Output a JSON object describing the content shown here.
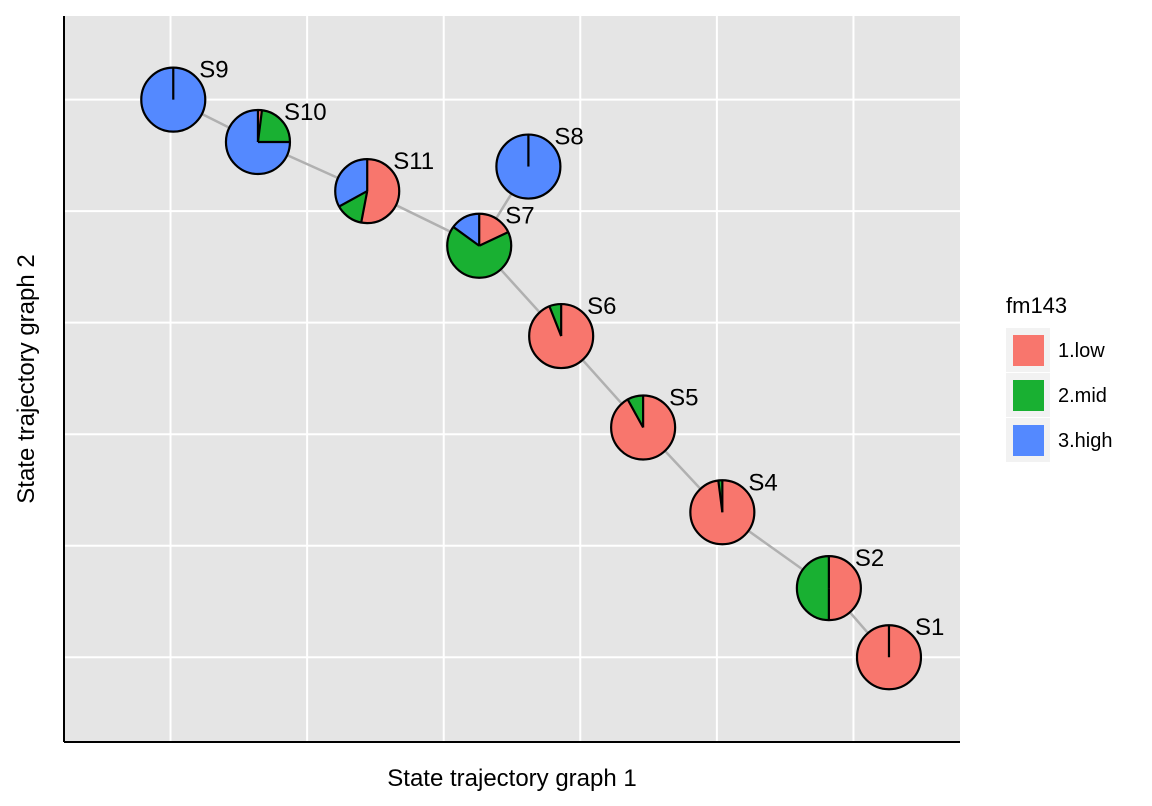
{
  "chart_data": {
    "type": "scatter",
    "subtype": "pie-nodes-trajectory",
    "xlabel": "State trajectory graph 1",
    "ylabel": "State trajectory graph 2",
    "legend": {
      "title": "fm143",
      "position": "right",
      "entries": [
        {
          "label": "1.low",
          "color": "#F8766D"
        },
        {
          "label": "2.mid",
          "color": "#19B032"
        },
        {
          "label": "3.high",
          "color": "#5489FF"
        }
      ]
    },
    "grid": true,
    "xlim": [
      -0.39,
      2.89
    ],
    "ylim": [
      -0.76,
      5.75
    ],
    "nodes": [
      {
        "label": "S1",
        "x": 2.63,
        "y": 0.0,
        "fractions": [
          1.0,
          0.0,
          0.0
        ]
      },
      {
        "label": "S2",
        "x": 2.41,
        "y": 0.62,
        "fractions": [
          0.5,
          0.5,
          0.0
        ]
      },
      {
        "label": "S4",
        "x": 2.02,
        "y": 1.3,
        "fractions": [
          0.98,
          0.02,
          0.0
        ]
      },
      {
        "label": "S5",
        "x": 1.73,
        "y": 2.06,
        "fractions": [
          0.92,
          0.08,
          0.0
        ]
      },
      {
        "label": "S6",
        "x": 1.43,
        "y": 2.88,
        "fractions": [
          0.94,
          0.06,
          0.0
        ]
      },
      {
        "label": "S7",
        "x": 1.13,
        "y": 3.69,
        "fractions": [
          0.18,
          0.67,
          0.15
        ]
      },
      {
        "label": "S8",
        "x": 1.31,
        "y": 4.4,
        "fractions": [
          0.0,
          0.0,
          1.0
        ]
      },
      {
        "label": "S11",
        "x": 0.72,
        "y": 4.18,
        "fractions": [
          0.53,
          0.14,
          0.33
        ]
      },
      {
        "label": "S10",
        "x": 0.32,
        "y": 4.62,
        "fractions": [
          0.02,
          0.23,
          0.75
        ]
      },
      {
        "label": "S9",
        "x": 0.01,
        "y": 5.0,
        "fractions": [
          0.0,
          0.0,
          1.0
        ]
      }
    ],
    "edges": [
      [
        "S1",
        "S2"
      ],
      [
        "S2",
        "S4"
      ],
      [
        "S4",
        "S5"
      ],
      [
        "S5",
        "S6"
      ],
      [
        "S6",
        "S7"
      ],
      [
        "S7",
        "S8"
      ],
      [
        "S7",
        "S11"
      ],
      [
        "S11",
        "S10"
      ],
      [
        "S10",
        "S9"
      ]
    ]
  }
}
